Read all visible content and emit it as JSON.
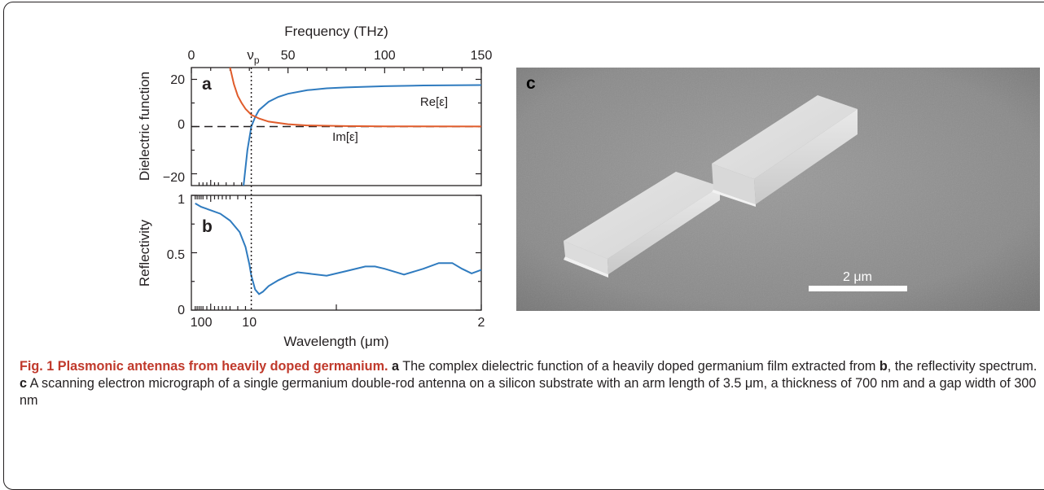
{
  "figure": {
    "top_axis_title": "Frequency (THz)",
    "top_ticks": [
      {
        "label": "0",
        "value": 0
      },
      {
        "label": "50",
        "value": 50
      },
      {
        "label": "100",
        "value": 100
      },
      {
        "label": "150",
        "value": 150
      }
    ],
    "plasma_label": "ν",
    "plasma_sub": "p",
    "bottom_axis_title": "Wavelength (μm)",
    "bottom_ticks": [
      {
        "label": "100",
        "value_um": 100
      },
      {
        "label": "10",
        "value_um": 10
      },
      {
        "label": "2",
        "value_um": 2
      }
    ],
    "panel_a": {
      "label": "a",
      "ylabel": "Dielectric function",
      "yticks": [
        "20",
        "0",
        "−20"
      ],
      "curve_labels": {
        "re": "Re[ε]",
        "im": "Im[ε]"
      }
    },
    "panel_b": {
      "label": "b",
      "ylabel": "Reflectivity",
      "yticks": [
        "1",
        "0.5",
        "0"
      ]
    },
    "panel_c": {
      "label": "c",
      "scalebar_label": "2 μm"
    },
    "colors": {
      "re": "#2f7bbf",
      "im": "#e05c2b",
      "reflectivity": "#2f7bbf",
      "axis": "#231f20"
    }
  },
  "chart_data": [
    {
      "type": "line",
      "panel": "a",
      "xlabel": "Frequency (THz)",
      "ylabel": "Dielectric function",
      "xlim": [
        0,
        150
      ],
      "ylim": [
        -25,
        25
      ],
      "plasma_frequency_thz": 31,
      "series": [
        {
          "name": "Re[ε]",
          "x": [
            27,
            29,
            31,
            33,
            35,
            40,
            45,
            50,
            60,
            70,
            80,
            100,
            120,
            150
          ],
          "y": [
            -25,
            -10,
            0,
            4,
            7,
            10.5,
            12.6,
            13.9,
            15.4,
            16.2,
            16.6,
            17.1,
            17.4,
            17.6
          ]
        },
        {
          "name": "Im[ε]",
          "x": [
            20,
            22,
            24,
            26,
            28,
            31,
            35,
            40,
            50,
            60,
            80,
            100,
            150
          ],
          "y": [
            25,
            18,
            13,
            10,
            7.5,
            5,
            3.4,
            2.1,
            1.0,
            0.5,
            0.2,
            0.1,
            0.05
          ]
        },
        {
          "name": "zero",
          "x": [
            0,
            150
          ],
          "y": [
            0,
            0
          ]
        }
      ]
    },
    {
      "type": "line",
      "panel": "b",
      "xlabel": "Wavelength (μm)",
      "ylabel": "Reflectivity",
      "xlim": [
        0,
        150
      ],
      "ylim": [
        0,
        1
      ],
      "series": [
        {
          "name": "Reflectivity",
          "x": [
            2,
            5,
            10,
            15,
            20,
            25,
            28,
            30,
            31,
            33,
            35,
            37,
            40,
            45,
            50,
            55,
            60,
            70,
            80,
            90,
            95,
            100,
            110,
            120,
            128,
            135,
            140,
            145,
            150
          ],
          "y": [
            0.93,
            0.9,
            0.87,
            0.84,
            0.78,
            0.68,
            0.55,
            0.4,
            0.3,
            0.18,
            0.14,
            0.16,
            0.21,
            0.26,
            0.3,
            0.33,
            0.32,
            0.3,
            0.34,
            0.38,
            0.38,
            0.36,
            0.31,
            0.36,
            0.41,
            0.41,
            0.36,
            0.32,
            0.35
          ]
        }
      ]
    }
  ],
  "caption": {
    "title": "Fig. 1 Plasmonic antennas from heavily doped germanium.",
    "a_label": "a",
    "a_text": " The complex dielectric function of a heavily doped germanium film extracted from ",
    "b_label": "b",
    "b_text": ", the reflectivity spectrum. ",
    "c_label": "c",
    "c_text": " A scanning electron micrograph of a single germanium double-rod antenna on a silicon substrate with an arm length of 3.5 μm, a thickness of 700 nm and a gap width of 300 nm"
  }
}
